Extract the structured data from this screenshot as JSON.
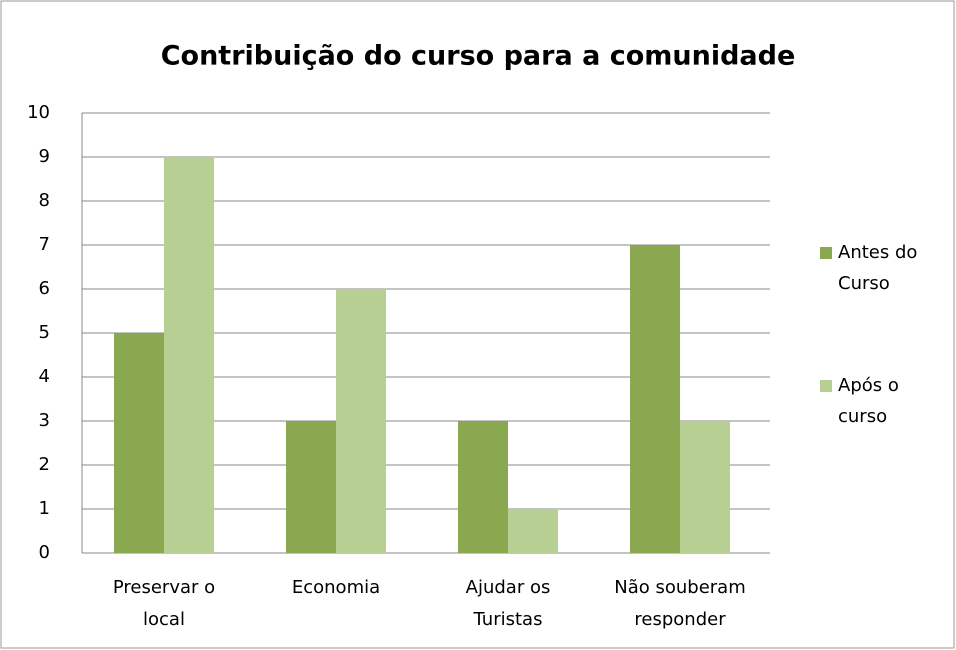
{
  "chart_data": {
    "type": "bar",
    "title": "Contribuição do curso para a comunidade",
    "categories": [
      "Preservar o local",
      "Economia",
      "Ajudar os Turistas",
      "Não souberam responder"
    ],
    "series": [
      {
        "name": "Antes do Curso",
        "color": "#8aa84f",
        "values": [
          5,
          3,
          3,
          7
        ]
      },
      {
        "name": "Após o curso",
        "color": "#b8cf94",
        "values": [
          9,
          6,
          1,
          3
        ]
      }
    ],
    "ylim": [
      0,
      10
    ],
    "yticks": [
      0,
      1,
      2,
      3,
      4,
      5,
      6,
      7,
      8,
      9,
      10
    ],
    "grid": true,
    "legend": "right"
  }
}
